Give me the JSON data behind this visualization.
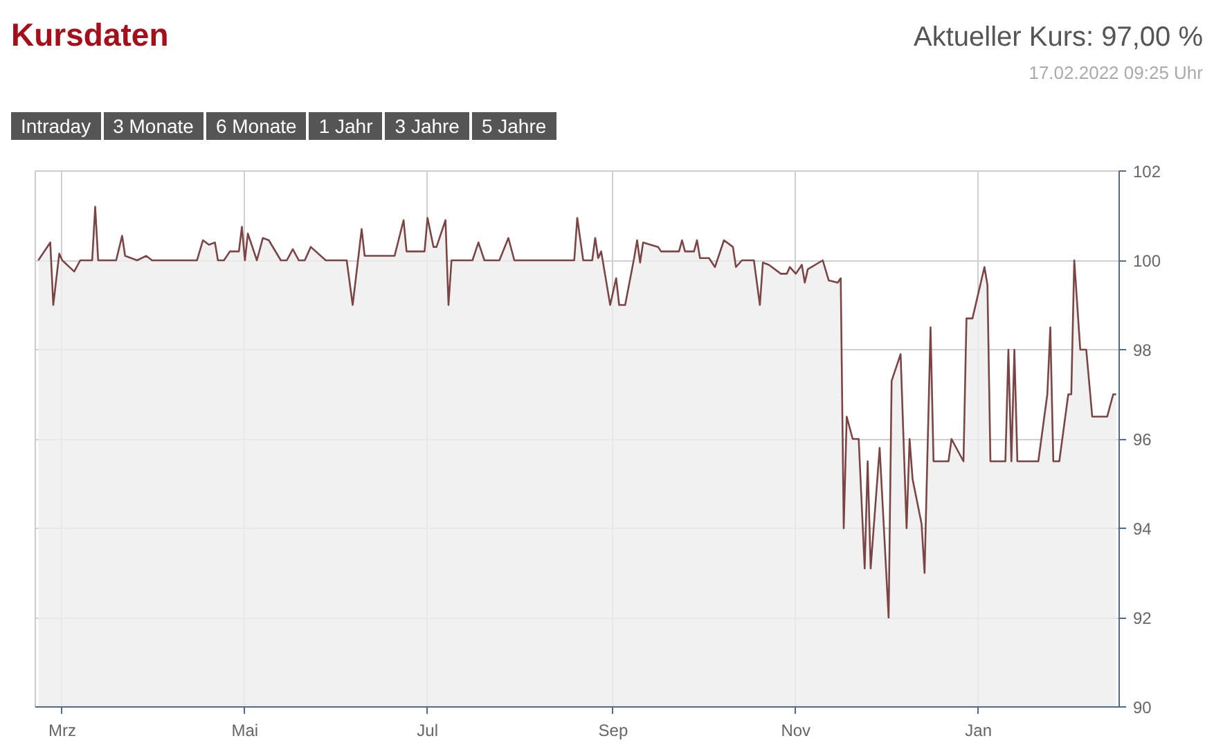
{
  "chart_data": {
    "type": "area",
    "title": "Kursdaten",
    "subtitle": "Aktueller Kurs: 97,00 %",
    "annotations": [
      "17.02.2022 09:25 Uhr",
      "Intraday",
      "3 Monate",
      "6 Monate",
      "1 Jahr",
      "3 Jahre",
      "5 Jahre"
    ],
    "x": [
      "2021-02-21",
      "2021-02-25",
      "2021-02-26",
      "2021-02-28",
      "2021-03-01",
      "2021-03-05",
      "2021-03-07",
      "2021-03-11",
      "2021-03-12",
      "2021-03-13",
      "2021-03-19",
      "2021-03-21",
      "2021-03-22",
      "2021-03-26",
      "2021-03-29",
      "2021-03-31",
      "2021-04-15",
      "2021-04-17",
      "2021-04-19",
      "2021-04-21",
      "2021-04-22",
      "2021-04-24",
      "2021-04-26",
      "2021-04-29",
      "2021-04-30",
      "2021-05-01",
      "2021-05-02",
      "2021-05-05",
      "2021-05-07",
      "2021-05-09",
      "2021-05-13",
      "2021-05-15",
      "2021-05-17",
      "2021-05-19",
      "2021-05-21",
      "2021-05-23",
      "2021-05-28",
      "2021-06-04",
      "2021-06-06",
      "2021-06-09",
      "2021-06-10",
      "2021-06-20",
      "2021-06-23",
      "2021-06-24",
      "2021-06-30",
      "2021-07-01",
      "2021-07-03",
      "2021-07-04",
      "2021-07-07",
      "2021-07-08",
      "2021-07-09",
      "2021-07-16",
      "2021-07-18",
      "2021-07-20",
      "2021-07-25",
      "2021-07-28",
      "2021-07-30",
      "2021-08-19",
      "2021-08-20",
      "2021-08-22",
      "2021-08-25",
      "2021-08-26",
      "2021-08-27",
      "2021-08-28",
      "2021-08-31",
      "2021-09-02",
      "2021-09-03",
      "2021-09-05",
      "2021-09-08",
      "2021-09-09",
      "2021-09-10",
      "2021-09-11",
      "2021-09-16",
      "2021-09-17",
      "2021-09-23",
      "2021-09-24",
      "2021-09-25",
      "2021-09-28",
      "2021-09-29",
      "2021-09-30",
      "2021-10-03",
      "2021-10-05",
      "2021-10-08",
      "2021-10-11",
      "2021-10-12",
      "2021-10-14",
      "2021-10-18",
      "2021-10-20",
      "2021-10-21",
      "2021-10-23",
      "2021-10-27",
      "2021-10-29",
      "2021-10-30",
      "2021-11-01",
      "2021-11-03",
      "2021-11-04",
      "2021-11-05",
      "2021-11-10",
      "2021-11-12",
      "2021-11-15",
      "2021-11-16",
      "2021-11-17",
      "2021-11-18",
      "2021-11-20",
      "2021-11-22",
      "2021-11-24",
      "2021-11-25",
      "2021-11-26",
      "2021-11-29",
      "2021-12-02",
      "2021-12-03",
      "2021-12-06",
      "2021-12-08",
      "2021-12-09",
      "2021-12-10",
      "2021-12-13",
      "2021-12-14",
      "2021-12-16",
      "2021-12-17",
      "2021-12-22",
      "2021-12-23",
      "2021-12-27",
      "2021-12-28",
      "2021-12-30",
      "2022-01-03",
      "2022-01-04",
      "2022-01-05",
      "2022-01-10",
      "2022-01-11",
      "2022-01-12",
      "2022-01-13",
      "2022-01-14",
      "2022-01-21",
      "2022-01-24",
      "2022-01-25",
      "2022-01-26",
      "2022-01-28",
      "2022-01-31",
      "2022-02-01",
      "2022-02-02",
      "2022-02-04",
      "2022-02-06",
      "2022-02-08",
      "2022-02-13",
      "2022-02-15",
      "2022-02-16"
    ],
    "series": [
      {
        "color": "#7b4545",
        "values": [
          100.0,
          100.4,
          99.0,
          100.15,
          100.0,
          99.75,
          100.0,
          100.0,
          101.2,
          100.0,
          100.0,
          100.55,
          100.1,
          100.0,
          100.1,
          100.0,
          100.0,
          100.45,
          100.35,
          100.4,
          100.0,
          100.0,
          100.2,
          100.2,
          100.75,
          100.0,
          100.6,
          100.0,
          100.5,
          100.45,
          100.0,
          100.0,
          100.25,
          100.0,
          100.0,
          100.3,
          100.0,
          100.0,
          99.0,
          100.7,
          100.1,
          100.1,
          100.9,
          100.2,
          100.2,
          100.95,
          100.3,
          100.3,
          100.9,
          99.0,
          100.0,
          100.0,
          100.4,
          100.0,
          100.0,
          100.5,
          100.0,
          100.0,
          100.95,
          100.0,
          100.0,
          100.5,
          100.05,
          100.2,
          99.0,
          99.6,
          99.0,
          99.0,
          100.05,
          100.45,
          99.95,
          100.4,
          100.3,
          100.2,
          100.2,
          100.45,
          100.2,
          100.2,
          100.45,
          100.05,
          100.05,
          99.85,
          100.45,
          100.3,
          99.85,
          100.0,
          100.0,
          99.0,
          99.95,
          99.9,
          99.7,
          99.7,
          99.85,
          99.7,
          99.9,
          99.5,
          99.8,
          100.0,
          99.55,
          99.5,
          99.6,
          94.0,
          96.5,
          96.0,
          96.0,
          93.1,
          95.5,
          93.1,
          95.8,
          92.0,
          97.3,
          97.9,
          94.0,
          96.0,
          95.1,
          94.1,
          93.0,
          98.5,
          95.5,
          95.5,
          96.0,
          95.5,
          98.7,
          98.7,
          99.85,
          99.45,
          95.5,
          95.5,
          98.0,
          95.5,
          98.0,
          95.5,
          95.5,
          97.0,
          98.5,
          95.5,
          95.5,
          97.0,
          97.0,
          100.0,
          98.0,
          98.0,
          96.5,
          96.5,
          97.0,
          97.0
        ]
      }
    ],
    "xlim": [
      "2021-02-20",
      "2022-02-17"
    ],
    "xticks": [
      {
        "value": "2021-03-01",
        "label": "Mrz"
      },
      {
        "value": "2021-05-01",
        "label": "Mai"
      },
      {
        "value": "2021-07-01",
        "label": "Jul"
      },
      {
        "value": "2021-09-01",
        "label": "Sep"
      },
      {
        "value": "2021-11-01",
        "label": "Nov"
      },
      {
        "value": "2022-01-01",
        "label": "Jan"
      }
    ],
    "ylim": [
      90,
      102
    ],
    "yticks": [
      90,
      92,
      94,
      96,
      98,
      100,
      102
    ],
    "grid": true
  }
}
